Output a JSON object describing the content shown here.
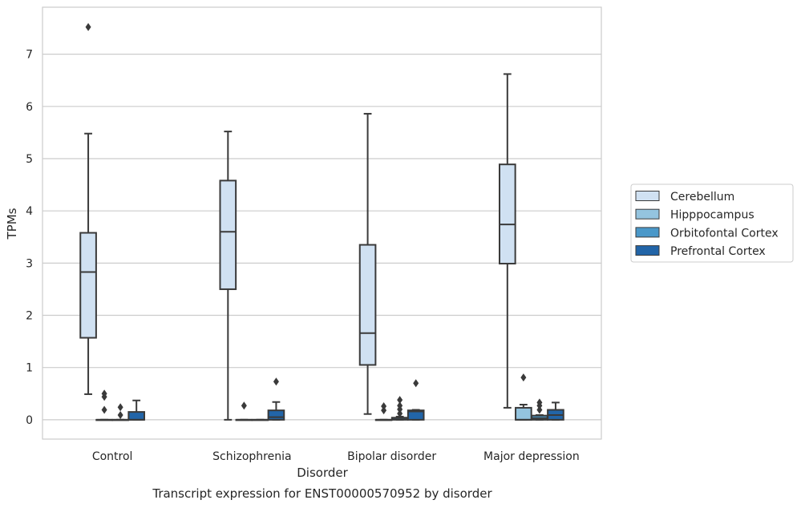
{
  "chart_data": {
    "type": "box",
    "caption": "Transcript expression for ENST00000570952 by disorder",
    "xlabel": "Disorder",
    "ylabel": "TPMs",
    "categories": [
      "Control",
      "Schizophrenia",
      "Bipolar disorder",
      "Major depression"
    ],
    "y_ticks": [
      "0",
      "1",
      "2",
      "3",
      "4",
      "5",
      "6",
      "7"
    ],
    "ylim": [
      -0.37,
      7.9
    ],
    "grid": "horizontal",
    "legend_position": "right",
    "series": [
      {
        "name": "Cerebellum",
        "color": "#d0e1f2",
        "boxes": [
          {
            "q1": 1.57,
            "median": 2.83,
            "q3": 3.58,
            "whisker_low": 0.49,
            "whisker_high": 5.48,
            "outliers": [
              7.52
            ]
          },
          {
            "q1": 2.5,
            "median": 3.6,
            "q3": 4.58,
            "whisker_low": 0.0,
            "whisker_high": 5.52,
            "outliers": []
          },
          {
            "q1": 1.05,
            "median": 1.66,
            "q3": 3.35,
            "whisker_low": 0.11,
            "whisker_high": 5.86,
            "outliers": []
          },
          {
            "q1": 2.99,
            "median": 3.74,
            "q3": 4.89,
            "whisker_low": 0.23,
            "whisker_high": 6.62,
            "outliers": []
          }
        ]
      },
      {
        "name": "Hipppocampus",
        "color": "#94c4df",
        "boxes": [
          {
            "q1": 0.0,
            "median": 0.0,
            "q3": 0.0,
            "whisker_low": 0.0,
            "whisker_high": 0.0,
            "outliers": [
              0.19,
              0.44,
              0.5
            ]
          },
          {
            "q1": 0.0,
            "median": 0.0,
            "q3": 0.0,
            "whisker_low": 0.0,
            "whisker_high": 0.0,
            "outliers": [
              0.27
            ]
          },
          {
            "q1": 0.0,
            "median": 0.0,
            "q3": 0.0,
            "whisker_low": 0.0,
            "whisker_high": 0.0,
            "outliers": [
              0.18,
              0.26
            ]
          },
          {
            "q1": 0.0,
            "median": 0.0,
            "q3": 0.23,
            "whisker_low": 0.0,
            "whisker_high": 0.29,
            "outliers": [
              0.81
            ]
          }
        ]
      },
      {
        "name": "Orbitofontal Cortex",
        "color": "#4a98c9",
        "boxes": [
          {
            "q1": 0.0,
            "median": 0.0,
            "q3": 0.0,
            "whisker_low": 0.0,
            "whisker_high": 0.0,
            "outliers": [
              0.09,
              0.24
            ]
          },
          {
            "q1": 0.0,
            "median": 0.0,
            "q3": 0.0,
            "whisker_low": 0.0,
            "whisker_high": 0.0,
            "outliers": []
          },
          {
            "q1": 0.0,
            "median": 0.01,
            "q3": 0.04,
            "whisker_low": 0.0,
            "whisker_high": 0.06,
            "outliers": [
              0.12,
              0.2,
              0.27,
              0.38
            ]
          },
          {
            "q1": 0.0,
            "median": 0.03,
            "q3": 0.08,
            "whisker_low": 0.0,
            "whisker_high": 0.09,
            "outliers": [
              0.19,
              0.27,
              0.33
            ]
          }
        ]
      },
      {
        "name": "Prefrontal Cortex",
        "color": "#2265a8",
        "boxes": [
          {
            "q1": 0.0,
            "median": 0.0,
            "q3": 0.15,
            "whisker_low": 0.0,
            "whisker_high": 0.37,
            "outliers": []
          },
          {
            "q1": 0.0,
            "median": 0.05,
            "q3": 0.18,
            "whisker_low": 0.0,
            "whisker_high": 0.34,
            "outliers": [
              0.73
            ]
          },
          {
            "q1": 0.0,
            "median": 0.16,
            "q3": 0.18,
            "whisker_low": 0.0,
            "whisker_high": 0.19,
            "outliers": [
              0.7
            ]
          },
          {
            "q1": 0.0,
            "median": 0.09,
            "q3": 0.19,
            "whisker_low": 0.0,
            "whisker_high": 0.33,
            "outliers": []
          }
        ]
      }
    ]
  }
}
